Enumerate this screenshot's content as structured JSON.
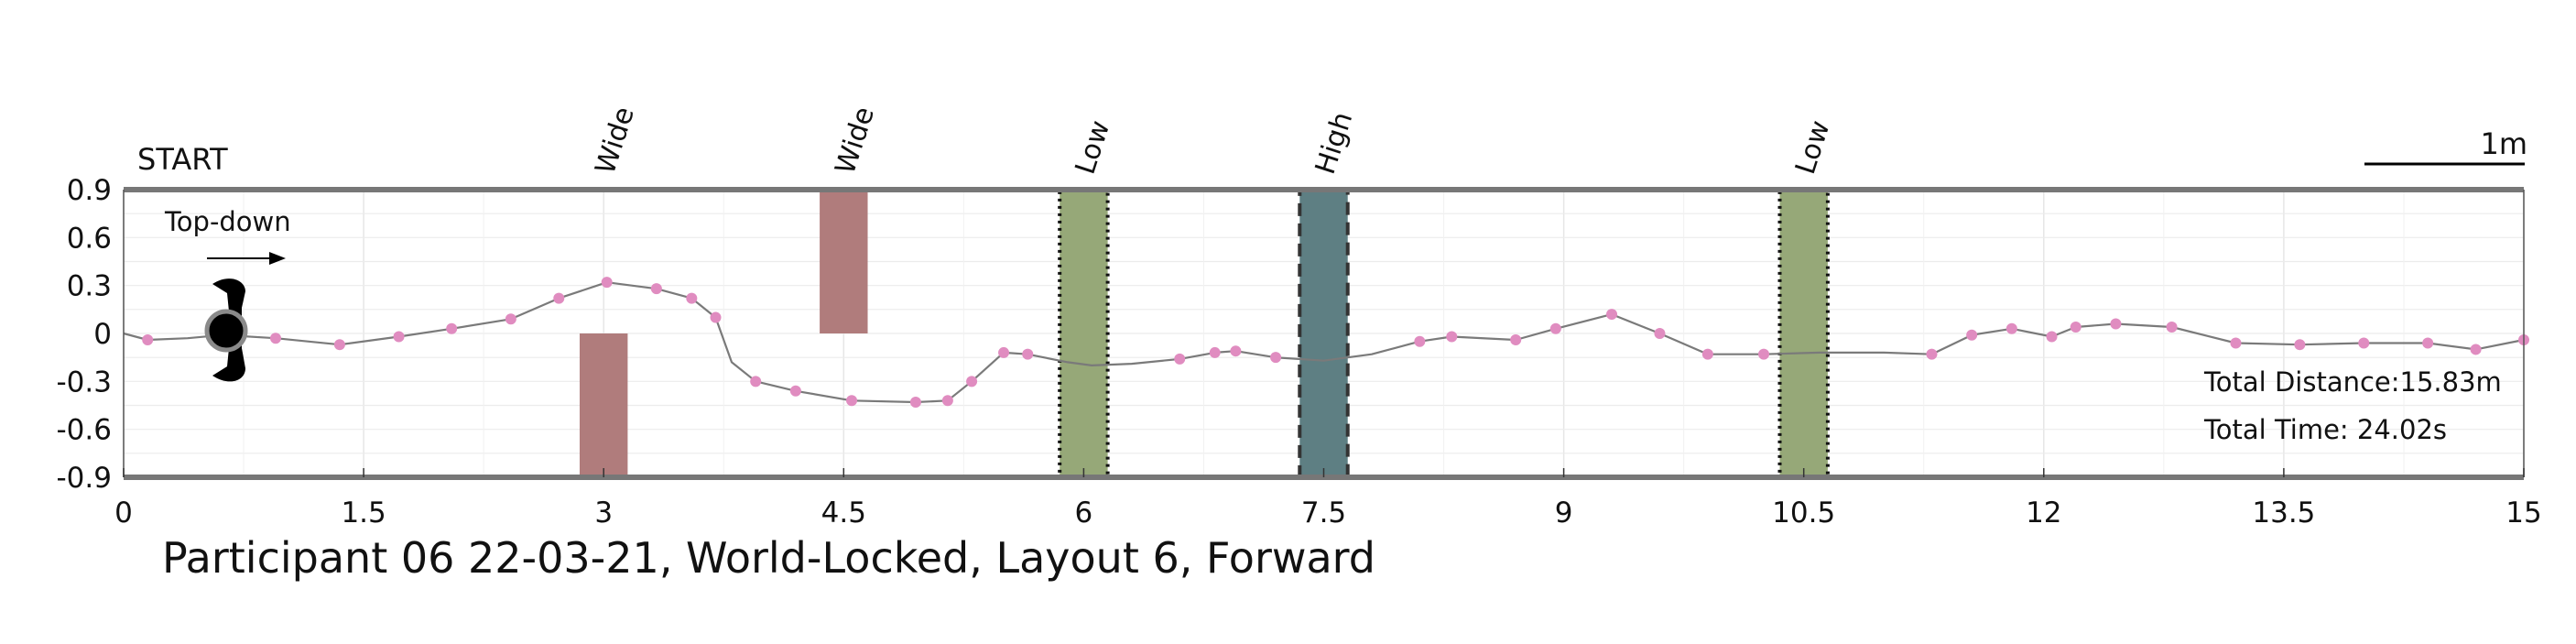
{
  "chart_data": {
    "type": "line",
    "title": "Participant 06 22-03-21, World-Locked, Layout 6, Forward",
    "xlim": [
      0,
      15
    ],
    "ylim": [
      -0.9,
      0.9
    ],
    "xticks": [
      "0",
      "1.5",
      "3",
      "4.5",
      "6",
      "7.5",
      "9",
      "10.5",
      "12",
      "13.5",
      "15"
    ],
    "yticks": [
      "0.9",
      "0.6",
      "0.3",
      "0",
      "-0.3",
      "-0.6",
      "-0.9"
    ],
    "grid": true,
    "start_label": "START",
    "direction_label": "Top-down",
    "scale_label": "1m",
    "annotations": [
      "Total Distance:15.83m",
      "Total Time: 24.02s"
    ],
    "obstacles": [
      {
        "label": "Wide",
        "x0": 2.85,
        "x1": 3.15,
        "y0": -0.9,
        "y1": 0,
        "color": "#b07c7c",
        "border": "none"
      },
      {
        "label": "Wide",
        "x0": 4.35,
        "x1": 4.65,
        "y0": 0,
        "y1": 0.9,
        "color": "#b07c7c",
        "border": "none"
      },
      {
        "label": "Low",
        "x0": 5.85,
        "x1": 6.15,
        "y0": -0.9,
        "y1": 0.9,
        "color": "#96a878",
        "border": "dotted"
      },
      {
        "label": "High",
        "x0": 7.35,
        "x1": 7.65,
        "y0": -0.9,
        "y1": 0.9,
        "color": "#5e7f83",
        "border": "dashed"
      },
      {
        "label": "Low",
        "x0": 10.35,
        "x1": 10.65,
        "y0": -0.9,
        "y1": 0.9,
        "color": "#96a878",
        "border": "dotted"
      }
    ],
    "series": [
      {
        "color": "#7a7a7a",
        "marker_color": "#e08cc0",
        "x": [
          0,
          0.15,
          0.4,
          0.62,
          0.95,
          1.35,
          1.72,
          2.05,
          2.42,
          2.72,
          3.02,
          3.33,
          3.55,
          3.7,
          3.8,
          3.95,
          4.2,
          4.55,
          4.95,
          5.15,
          5.3,
          5.5,
          5.65,
          5.9,
          6.05,
          6.3,
          6.6,
          6.82,
          6.95,
          7.2,
          7.5,
          7.8,
          8.1,
          8.3,
          8.7,
          8.95,
          9.3,
          9.6,
          9.9,
          10.25,
          10.6,
          11.0,
          11.3,
          11.55,
          11.8,
          12.05,
          12.2,
          12.45,
          12.8,
          13.2,
          13.6,
          14.0,
          14.4,
          14.7,
          15.0
        ],
        "y": [
          0.0,
          -0.04,
          -0.03,
          -0.01,
          -0.03,
          -0.07,
          -0.02,
          0.03,
          0.09,
          0.22,
          0.32,
          0.28,
          0.22,
          0.1,
          -0.18,
          -0.3,
          -0.36,
          -0.42,
          -0.43,
          -0.42,
          -0.3,
          -0.12,
          -0.13,
          -0.18,
          -0.2,
          -0.19,
          -0.16,
          -0.12,
          -0.11,
          -0.15,
          -0.17,
          -0.13,
          -0.05,
          -0.02,
          -0.04,
          0.03,
          0.12,
          0.0,
          -0.13,
          -0.13,
          -0.12,
          -0.12,
          -0.13,
          -0.01,
          0.03,
          -0.02,
          0.04,
          0.06,
          0.04,
          -0.06,
          -0.07,
          -0.06,
          -0.06,
          -0.1,
          -0.04
        ],
        "markers_x": [
          0.15,
          0.95,
          1.35,
          1.72,
          2.05,
          2.42,
          2.72,
          3.02,
          3.33,
          3.55,
          3.7,
          3.95,
          4.2,
          4.55,
          4.95,
          5.15,
          5.3,
          5.5,
          5.65,
          6.6,
          6.82,
          6.95,
          7.2,
          8.1,
          8.3,
          8.7,
          8.95,
          9.3,
          9.6,
          9.9,
          10.25,
          11.3,
          11.55,
          11.8,
          12.05,
          12.2,
          12.45,
          12.8,
          13.2,
          13.6,
          14.0,
          14.4,
          14.7,
          15.0
        ]
      }
    ]
  }
}
